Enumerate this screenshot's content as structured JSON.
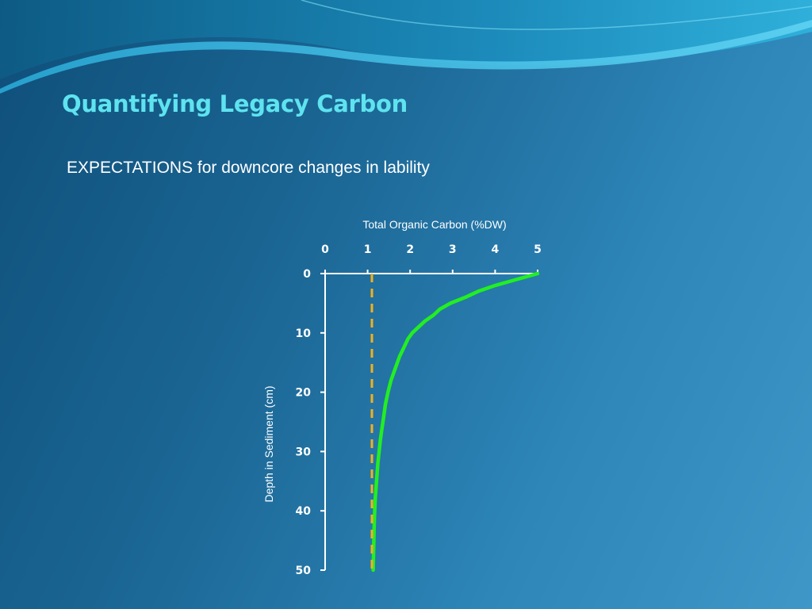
{
  "slide": {
    "title": "Quantifying Legacy Carbon",
    "subtitle": "EXPECTATIONS for downcore changes in lability"
  },
  "colors": {
    "title": "#5ee3ef",
    "curve": "#22ee22",
    "reference_line": "#f0b020",
    "axis": "#ffffff"
  },
  "chart_data": {
    "type": "line",
    "xlabel": "Total Organic  Carbon (%DW)",
    "ylabel": "Depth in Sediment (cm)",
    "xlim": [
      0,
      5
    ],
    "ylim": [
      0,
      50
    ],
    "x_axis_position": "top",
    "y_axis_inverted": true,
    "xticks": [
      0,
      1,
      2,
      3,
      4,
      5
    ],
    "yticks": [
      0,
      10,
      20,
      30,
      40,
      50
    ],
    "grid": false,
    "series": [
      {
        "style": "solid",
        "color": "#22ee22",
        "x": [
          5.0,
          4.5,
          4.0,
          3.6,
          3.3,
          2.95,
          2.7,
          2.55,
          2.35,
          2.2,
          2.05,
          1.95,
          1.85,
          1.75,
          1.65,
          1.55,
          1.48,
          1.42,
          1.38,
          1.34,
          1.3,
          1.27,
          1.24,
          1.22,
          1.2,
          1.18,
          1.16,
          1.15,
          1.14,
          1.13
        ],
        "y": [
          0,
          1,
          2,
          3,
          4,
          5,
          6,
          7,
          8,
          9,
          10,
          11,
          12.5,
          14,
          16,
          18,
          20,
          22,
          24,
          26,
          28,
          30,
          32,
          34,
          36,
          38,
          41,
          44,
          47,
          50
        ]
      },
      {
        "style": "dashed",
        "color": "#f0b020",
        "x": [
          1.1,
          1.1
        ],
        "y": [
          0,
          50
        ]
      }
    ]
  }
}
